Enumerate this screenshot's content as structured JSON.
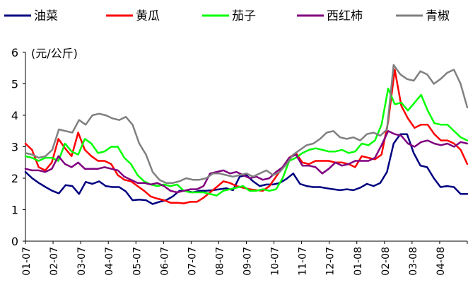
{
  "chart_data": {
    "type": "line",
    "unit_label": "(元/公斤)",
    "ylim": [
      0,
      6
    ],
    "yticks": [
      0,
      1,
      2,
      3,
      4,
      5,
      6
    ],
    "grid": false,
    "legend_position": "top",
    "x_ticks": [
      "01-07",
      "02-07",
      "03-07",
      "04-07",
      "05-07",
      "06-07",
      "07-07",
      "08-07",
      "09-07",
      "10-07",
      "11-07",
      "12-07",
      "01-08",
      "02-08",
      "03-08",
      "04-08"
    ],
    "series": [
      {
        "name": "油菜",
        "color": "#000080",
        "values": [
          2.2,
          2.0,
          1.85,
          1.72,
          1.6,
          1.52,
          1.78,
          1.75,
          1.5,
          1.88,
          1.82,
          1.9,
          1.75,
          1.72,
          1.72,
          1.58,
          1.3,
          1.32,
          1.3,
          1.18,
          1.25,
          1.3,
          1.42,
          1.6,
          1.6,
          1.55,
          1.6,
          1.6,
          1.62,
          1.65,
          1.68,
          1.62,
          2.05,
          2.1,
          1.9,
          1.75,
          1.8,
          1.8,
          1.85,
          1.98,
          2.15,
          1.82,
          1.75,
          1.72,
          1.72,
          1.68,
          1.65,
          1.62,
          1.65,
          1.62,
          1.7,
          1.82,
          1.75,
          1.85,
          2.2,
          3.1,
          3.4,
          3.4,
          2.8,
          2.4,
          2.35,
          2.0,
          1.72,
          1.75,
          1.72,
          1.5,
          1.5
        ]
      },
      {
        "name": "黄瓜",
        "color": "#ff0000",
        "values": [
          3.1,
          2.9,
          2.35,
          2.25,
          2.5,
          3.25,
          2.95,
          2.7,
          3.45,
          2.9,
          2.7,
          2.55,
          2.55,
          2.45,
          2.1,
          1.95,
          1.9,
          1.75,
          1.6,
          1.42,
          1.35,
          1.3,
          1.22,
          1.22,
          1.2,
          1.25,
          1.25,
          1.38,
          1.55,
          1.72,
          1.9,
          1.85,
          1.75,
          1.7,
          1.65,
          1.62,
          1.6,
          1.75,
          2.05,
          2.35,
          2.65,
          2.8,
          2.5,
          2.45,
          2.55,
          2.55,
          2.55,
          2.5,
          2.5,
          2.45,
          2.35,
          2.7,
          2.65,
          2.6,
          2.75,
          3.8,
          5.45,
          4.3,
          3.9,
          3.6,
          3.7,
          3.7,
          3.4,
          3.2,
          3.2,
          3.1,
          2.9,
          2.45
        ]
      },
      {
        "name": "茄子",
        "color": "#00ff00",
        "values": [
          2.7,
          2.65,
          2.55,
          2.65,
          2.65,
          2.55,
          3.1,
          2.85,
          2.75,
          3.25,
          3.1,
          2.8,
          2.85,
          3.0,
          3.0,
          2.65,
          2.45,
          2.1,
          1.9,
          1.8,
          1.75,
          1.8,
          1.75,
          1.8,
          1.6,
          1.55,
          1.55,
          1.55,
          1.5,
          1.45,
          1.6,
          1.65,
          1.7,
          1.75,
          1.6,
          1.6,
          1.65,
          1.6,
          1.65,
          2.0,
          2.55,
          2.65,
          2.8,
          2.9,
          2.95,
          2.9,
          2.85,
          2.85,
          2.9,
          2.8,
          2.85,
          3.1,
          3.05,
          3.2,
          3.7,
          4.85,
          4.35,
          4.4,
          4.15,
          4.4,
          4.65,
          4.15,
          3.75,
          3.7,
          3.7,
          3.5,
          3.3,
          3.2
        ]
      },
      {
        "name": "西红柿",
        "color": "#800080",
        "values": [
          2.3,
          2.25,
          2.25,
          2.2,
          2.3,
          2.7,
          2.45,
          2.35,
          2.5,
          2.3,
          2.3,
          2.3,
          2.35,
          2.3,
          2.25,
          2.05,
          1.95,
          1.85,
          1.85,
          1.8,
          1.85,
          1.75,
          1.6,
          1.55,
          1.6,
          1.65,
          1.65,
          1.75,
          2.15,
          2.2,
          2.25,
          2.15,
          2.2,
          2.1,
          2.0,
          2.05,
          1.95,
          2.0,
          2.2,
          2.35,
          2.65,
          2.75,
          2.4,
          2.4,
          2.35,
          2.15,
          2.3,
          2.5,
          2.4,
          2.45,
          2.55,
          2.55,
          2.55,
          2.65,
          3.05,
          3.5,
          3.4,
          3.35,
          3.1,
          3.0,
          3.15,
          3.2,
          3.1,
          3.05,
          3.1,
          3.0,
          3.15,
          3.1
        ]
      },
      {
        "name": "青椒",
        "color": "#808080",
        "values": [
          2.8,
          2.75,
          2.65,
          2.7,
          2.9,
          3.55,
          3.5,
          3.45,
          3.85,
          3.7,
          4.0,
          4.05,
          4.0,
          3.9,
          3.85,
          3.95,
          3.7,
          3.1,
          2.75,
          2.2,
          1.95,
          1.85,
          1.85,
          1.9,
          2.0,
          1.95,
          1.95,
          2.0,
          2.15,
          2.15,
          2.1,
          2.05,
          2.1,
          2.15,
          2.05,
          2.15,
          2.25,
          2.1,
          2.2,
          2.45,
          2.75,
          2.9,
          3.05,
          3.1,
          3.25,
          3.45,
          3.5,
          3.3,
          3.25,
          3.3,
          3.2,
          3.4,
          3.45,
          3.35,
          3.55,
          5.6,
          5.3,
          5.15,
          5.1,
          5.4,
          5.3,
          5.0,
          5.15,
          5.35,
          5.45,
          5.0,
          4.25
        ]
      }
    ]
  }
}
